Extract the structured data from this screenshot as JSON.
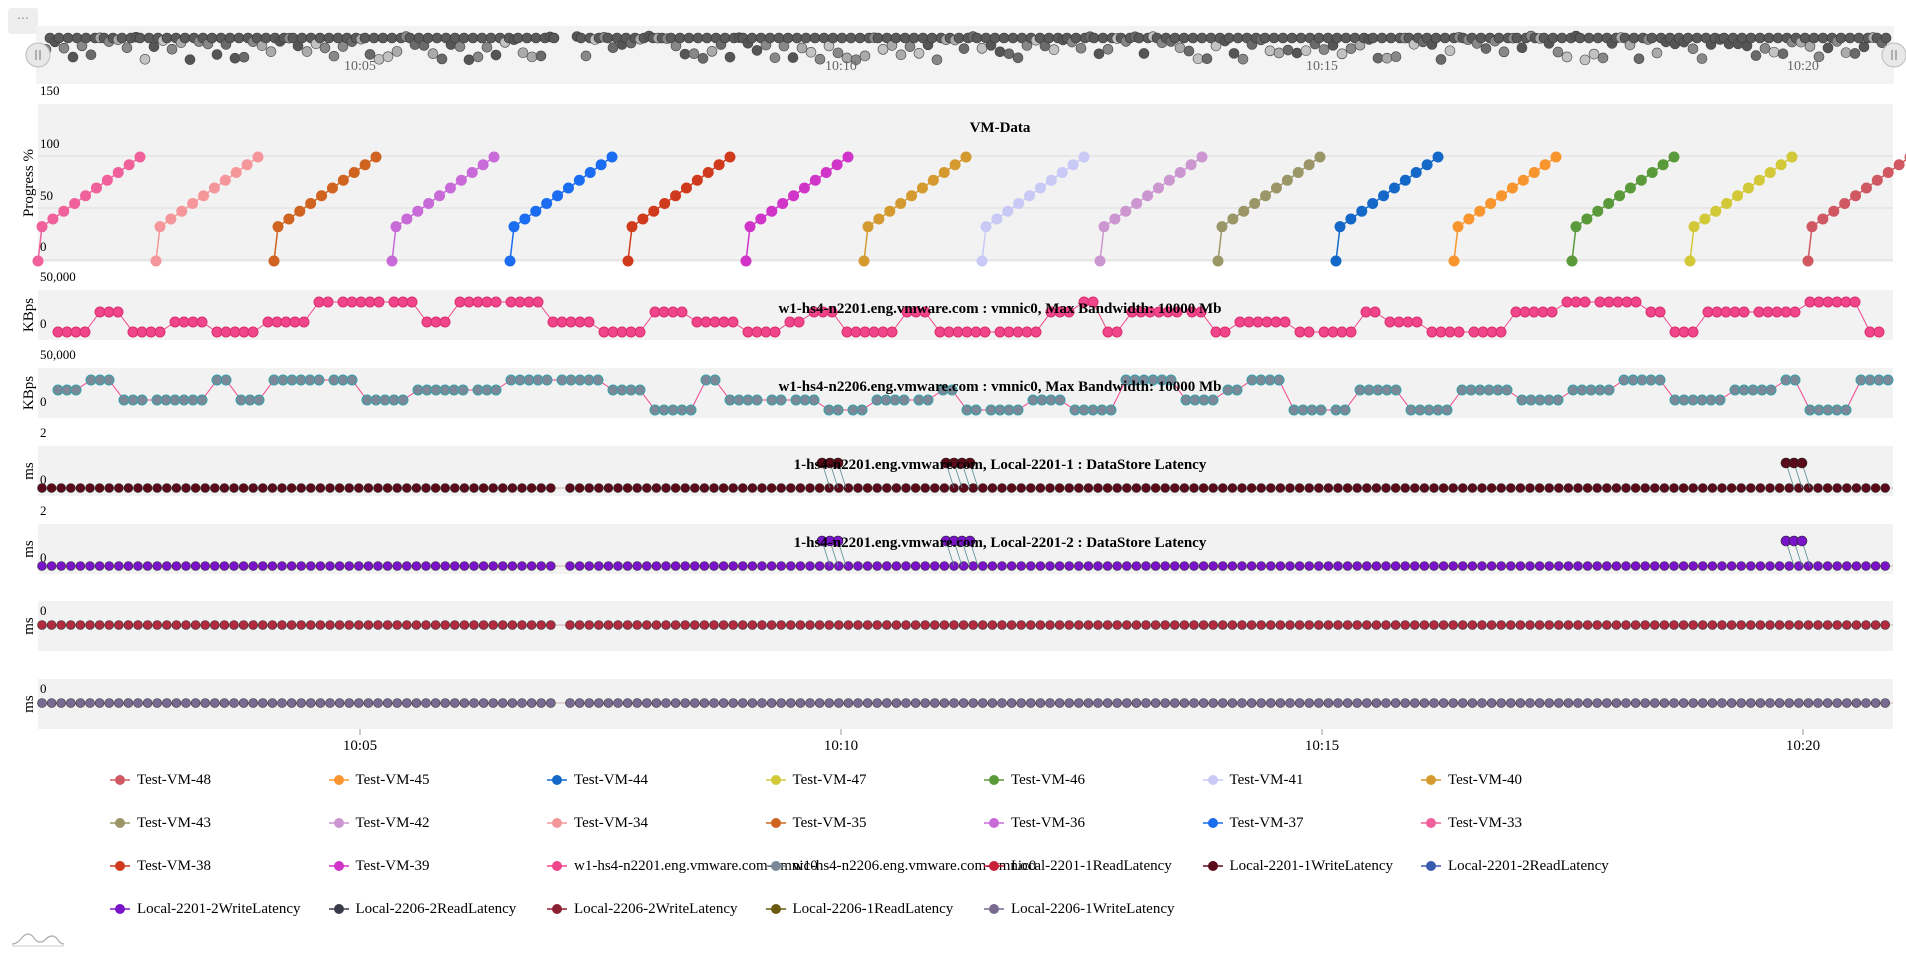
{
  "menu_label": "⋯",
  "x_ticks": [
    "10:05",
    "10:10",
    "10:15",
    "10:20"
  ],
  "chart_data": [
    {
      "type": "scatter",
      "title": "VM-Data",
      "ylabel": "Progress %",
      "yticks": [
        "150",
        "100",
        "50",
        "0"
      ],
      "ylim": [
        0,
        150
      ],
      "note": "Sixteen VMs each progress from about 33% to 100% in sequence",
      "series": [
        {
          "name": "Test-VM-33",
          "color": "#f0609a",
          "start": "10:01",
          "end": "10:02",
          "values": [
            33,
            100
          ]
        },
        {
          "name": "Test-VM-34",
          "color": "#f5979a",
          "start": "10:02",
          "end": "10:04",
          "values": [
            33,
            100
          ]
        },
        {
          "name": "Test-VM-35",
          "color": "#d0631f",
          "start": "10:03",
          "end": "10:05",
          "values": [
            33,
            100
          ]
        },
        {
          "name": "Test-VM-36",
          "color": "#c86ad8",
          "start": "10:04",
          "end": "10:06",
          "values": [
            33,
            100
          ]
        },
        {
          "name": "Test-VM-37",
          "color": "#1a6cf0",
          "start": "10:06",
          "end": "10:07",
          "values": [
            33,
            100
          ]
        },
        {
          "name": "Test-VM-38",
          "color": "#d03a1c",
          "start": "10:07",
          "end": "10:08",
          "values": [
            33,
            100
          ]
        },
        {
          "name": "Test-VM-39",
          "color": "#d034c8",
          "start": "10:08",
          "end": "10:09",
          "values": [
            33,
            100
          ]
        },
        {
          "name": "Test-VM-40",
          "color": "#d49a30",
          "start": "10:09",
          "end": "10:11",
          "values": [
            33,
            100
          ]
        },
        {
          "name": "Test-VM-41",
          "color": "#c8caf5",
          "start": "10:10",
          "end": "10:12",
          "values": [
            33,
            100
          ]
        },
        {
          "name": "Test-VM-42",
          "color": "#cc96d0",
          "start": "10:12",
          "end": "10:13",
          "values": [
            33,
            100
          ]
        },
        {
          "name": "Test-VM-43",
          "color": "#9a9668",
          "start": "10:13",
          "end": "10:14",
          "values": [
            33,
            100
          ]
        },
        {
          "name": "Test-VM-44",
          "color": "#1468c8",
          "start": "10:14",
          "end": "10:15",
          "values": [
            33,
            100
          ]
        },
        {
          "name": "Test-VM-45",
          "color": "#f8952e",
          "start": "10:16",
          "end": "10:17",
          "values": [
            33,
            100
          ]
        },
        {
          "name": "Test-VM-46",
          "color": "#5a9a3a",
          "start": "10:17",
          "end": "10:18",
          "values": [
            33,
            100
          ]
        },
        {
          "name": "Test-VM-47",
          "color": "#d2c838",
          "start": "10:18",
          "end": "10:19",
          "values": [
            33,
            100
          ]
        },
        {
          "name": "Test-VM-48",
          "color": "#d05862",
          "start": "10:19",
          "end": "10:21",
          "values": [
            33,
            100
          ]
        }
      ]
    },
    {
      "type": "scatter",
      "title": "w1-hs4-n2201.eng.vmware.com : vmnic0, Max Bandwidth: 10000 Mb",
      "ylabel": "KBps",
      "yticks": [
        "50,000",
        "0"
      ],
      "series": [
        {
          "name": "w1-hs4-n2201.eng.vmware.com-vmnic0",
          "color": "#f0458a"
        }
      ]
    },
    {
      "type": "scatter",
      "title": "w1-hs4-n2206.eng.vmware.com : vmnic0, Max Bandwidth: 10000 Mb",
      "ylabel": "KBps",
      "yticks": [
        "50,000",
        "0"
      ],
      "series": [
        {
          "name": "w1-hs4-n2206.eng.vmware.com-vmnic0",
          "color": "#7a8898"
        }
      ]
    },
    {
      "type": "scatter",
      "title": "1-hs4-n2201.eng.vmware.com, Local-2201-1 : DataStore Latency",
      "ylabel": "ms",
      "yticks": [
        "2",
        "0"
      ],
      "series": [
        {
          "name": "Local-2201-1WriteLatency",
          "color": "#5a0a18"
        }
      ]
    },
    {
      "type": "scatter",
      "title": "1-hs4-n2201.eng.vmware.com, Local-2201-2 : DataStore Latency",
      "ylabel": "ms",
      "yticks": [
        "2",
        "0"
      ],
      "series": [
        {
          "name": "Local-2201-2WriteLatency",
          "color": "#7a14c8"
        }
      ]
    },
    {
      "type": "scatter",
      "title": "",
      "ylabel": "ms",
      "yticks": [
        "0"
      ],
      "series": [
        {
          "name": "Local-2206-2WriteLatency",
          "color": "#b02a40"
        }
      ]
    },
    {
      "type": "scatter",
      "title": "",
      "ylabel": "ms",
      "yticks": [
        "0"
      ],
      "series": [
        {
          "name": "Local-2206-1WriteLatency",
          "color": "#786a90"
        }
      ]
    }
  ],
  "legend": [
    {
      "label": "Test-VM-48",
      "color": "#d05862"
    },
    {
      "label": "Test-VM-45",
      "color": "#f8952e"
    },
    {
      "label": "Test-VM-44",
      "color": "#1468c8"
    },
    {
      "label": "Test-VM-47",
      "color": "#d2c838"
    },
    {
      "label": "Test-VM-46",
      "color": "#5a9a3a"
    },
    {
      "label": "Test-VM-41",
      "color": "#c8caf5"
    },
    {
      "label": "Test-VM-40",
      "color": "#d49a30"
    },
    {
      "label": "Test-VM-43",
      "color": "#9a9668"
    },
    {
      "label": "Test-VM-42",
      "color": "#cc96d0"
    },
    {
      "label": "Test-VM-34",
      "color": "#f5979a"
    },
    {
      "label": "Test-VM-35",
      "color": "#d0631f"
    },
    {
      "label": "Test-VM-36",
      "color": "#c86ad8"
    },
    {
      "label": "Test-VM-37",
      "color": "#1a6cf0"
    },
    {
      "label": "Test-VM-33",
      "color": "#f0609a"
    },
    {
      "label": "Test-VM-38",
      "color": "#d03a1c"
    },
    {
      "label": "Test-VM-39",
      "color": "#d034c8"
    },
    {
      "label": "w1-hs4-n2201.eng.vmware.com-vmnic0",
      "color": "#f0458a"
    },
    {
      "label": "w1-hs4-n2206.eng.vmware.com-vmnic0",
      "color": "#7a8898"
    },
    {
      "label": "Local-2201-1ReadLatency",
      "color": "#c8223a"
    },
    {
      "label": "Local-2201-1WriteLatency",
      "color": "#5a0a18"
    },
    {
      "label": "Local-2201-2ReadLatency",
      "color": "#3a5ab0"
    },
    {
      "label": "Local-2201-2WriteLatency",
      "color": "#7a14c8"
    },
    {
      "label": "Local-2206-2ReadLatency",
      "color": "#3a3a4a"
    },
    {
      "label": "Local-2206-2WriteLatency",
      "color": "#8a2030"
    },
    {
      "label": "Local-2206-1ReadLatency",
      "color": "#6a5a10"
    },
    {
      "label": "Local-2206-1WriteLatency",
      "color": "#786a90"
    }
  ]
}
